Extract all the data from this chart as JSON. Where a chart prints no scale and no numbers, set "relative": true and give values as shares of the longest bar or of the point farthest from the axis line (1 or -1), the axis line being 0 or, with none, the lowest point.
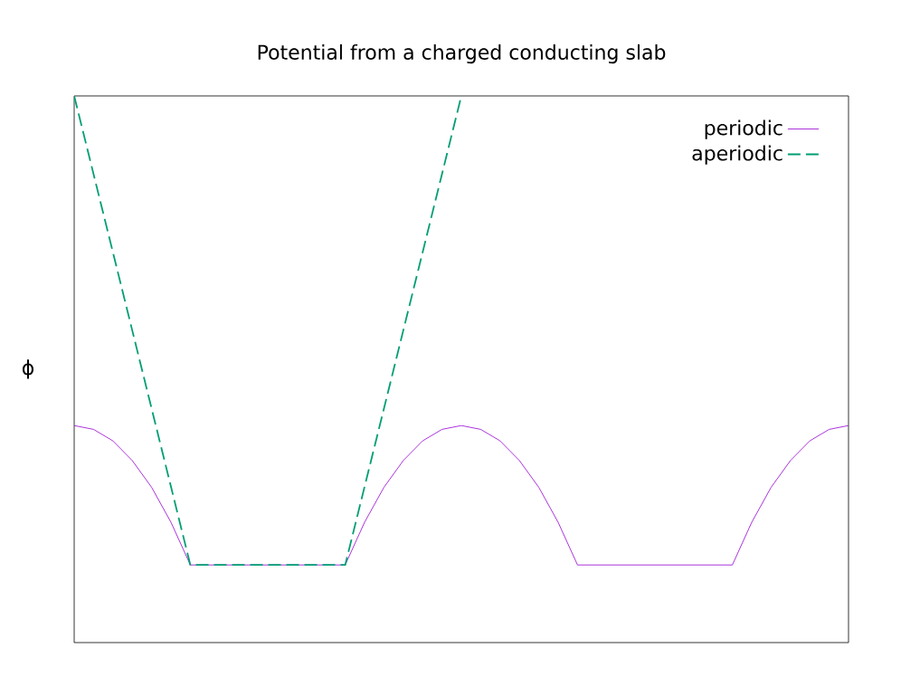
{
  "chart_data": {
    "type": "line",
    "title": "Potential from a charged conducting slab",
    "ylabel": "ϕ",
    "relative": true,
    "legend": "top right",
    "categories": [
      null,
      null,
      null,
      null,
      null,
      null,
      null,
      null,
      null,
      null,
      null,
      null,
      null,
      null,
      null,
      null,
      null,
      null,
      null,
      null,
      null,
      null,
      null,
      null,
      null,
      null,
      null,
      null,
      null,
      null,
      null,
      null,
      null,
      null,
      null,
      null,
      null,
      null,
      null,
      null,
      null
    ],
    "series": [
      {
        "name": "periodic",
        "color": "#9400d3",
        "line_style": "solid",
        "values": [
          0.397,
          0.39,
          0.369,
          0.333,
          0.284,
          0.22,
          0.142,
          0.142,
          0.142,
          0.142,
          0.142,
          0.142,
          0.142,
          0.142,
          0.142,
          0.22,
          0.284,
          0.333,
          0.369,
          0.39,
          0.397,
          0.39,
          0.369,
          0.333,
          0.284,
          0.22,
          0.142,
          0.142,
          0.142,
          0.142,
          0.142,
          0.142,
          0.142,
          0.142,
          0.142,
          0.22,
          0.284,
          0.333,
          0.369,
          0.39,
          0.397
        ]
      },
      {
        "name": "aperiodic",
        "color": "#009e73",
        "line_style": "dashed",
        "values": [
          1.0,
          0.857,
          0.714,
          0.571,
          0.428,
          0.285,
          0.142,
          0.142,
          0.142,
          0.142,
          0.142,
          0.142,
          0.142,
          0.142,
          0.142,
          0.285,
          0.428,
          0.571,
          0.714,
          0.857,
          1.0,
          null,
          null,
          null,
          null,
          null,
          null,
          null,
          null,
          null,
          null,
          null,
          null,
          null,
          null,
          null,
          null,
          null,
          null,
          null,
          null
        ]
      }
    ]
  }
}
